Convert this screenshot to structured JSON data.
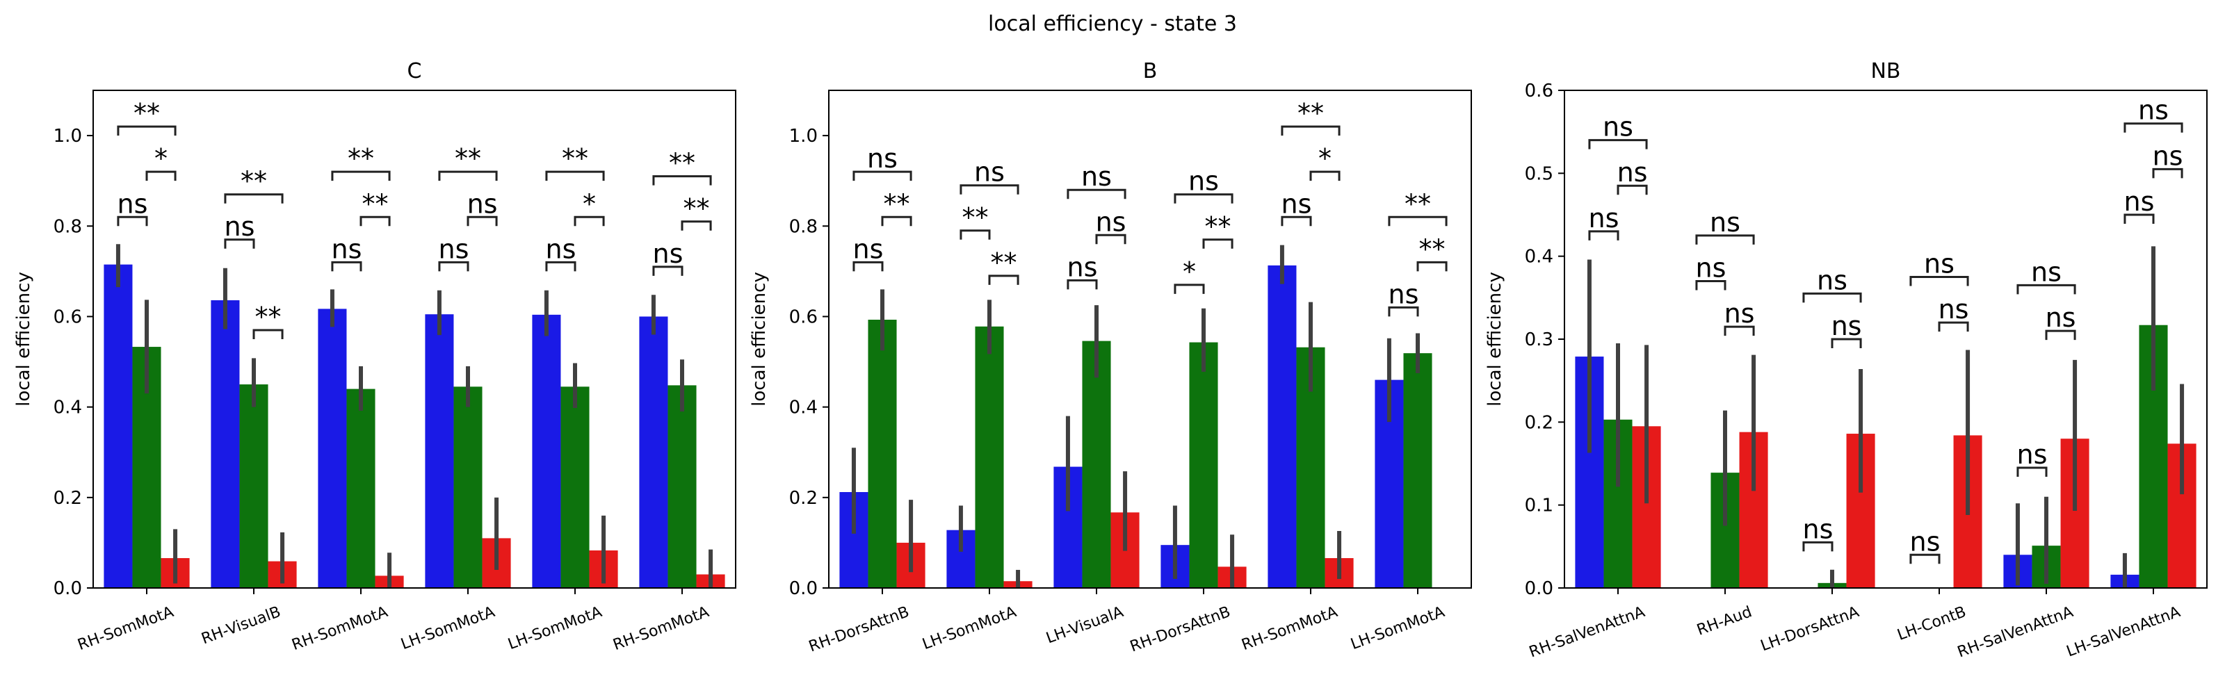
{
  "figure": {
    "title": "local efficiency - state 3"
  },
  "colors": {
    "series": [
      "#1a1ae6",
      "#0d730d",
      "#e61a1a"
    ],
    "error_bar": "#404040",
    "axis": "#000000"
  },
  "chart_data": [
    {
      "type": "bar",
      "title": "C",
      "ylabel": "local efficiency",
      "ylim": [
        0,
        1.1
      ],
      "yticks": [
        "0.0",
        "0.2",
        "0.4",
        "0.6",
        "0.8",
        "1.0"
      ],
      "grid": false,
      "categories": [
        "RH-SomMotA",
        "RH-VisualB",
        "RH-SomMotA",
        "LH-SomMotA",
        "LH-SomMotA",
        "RH-SomMotA"
      ],
      "series": [
        {
          "values": [
            0.715,
            0.636,
            0.617,
            0.605,
            0.604,
            0.6
          ],
          "err_low": [
            0.665,
            0.572,
            0.577,
            0.559,
            0.557,
            0.56
          ],
          "err_high": [
            0.76,
            0.707,
            0.66,
            0.658,
            0.658,
            0.648
          ]
        },
        {
          "values": [
            0.533,
            0.45,
            0.44,
            0.445,
            0.445,
            0.448
          ],
          "err_low": [
            0.43,
            0.4,
            0.392,
            0.4,
            0.398,
            0.39
          ],
          "err_high": [
            0.637,
            0.508,
            0.49,
            0.49,
            0.497,
            0.505
          ]
        },
        {
          "values": [
            0.066,
            0.059,
            0.027,
            0.11,
            0.083,
            0.03
          ],
          "err_low": [
            0.01,
            0.01,
            0.0,
            0.04,
            0.01,
            0.0
          ],
          "err_high": [
            0.13,
            0.123,
            0.078,
            0.2,
            0.16,
            0.085
          ]
        }
      ],
      "annotations": [
        {
          "group": 0,
          "from": 0,
          "to": 1,
          "y": 0.82,
          "label": "ns"
        },
        {
          "group": 0,
          "from": 1,
          "to": 2,
          "y": 0.92,
          "label": "*"
        },
        {
          "group": 0,
          "from": 0,
          "to": 2,
          "y": 1.02,
          "label": "**"
        },
        {
          "group": 1,
          "from": 0,
          "to": 1,
          "y": 0.77,
          "label": "ns"
        },
        {
          "group": 1,
          "from": 1,
          "to": 2,
          "y": 0.57,
          "label": "**"
        },
        {
          "group": 1,
          "from": 0,
          "to": 2,
          "y": 0.87,
          "label": "**"
        },
        {
          "group": 2,
          "from": 0,
          "to": 1,
          "y": 0.72,
          "label": "ns"
        },
        {
          "group": 2,
          "from": 1,
          "to": 2,
          "y": 0.82,
          "label": "**"
        },
        {
          "group": 2,
          "from": 0,
          "to": 2,
          "y": 0.92,
          "label": "**"
        },
        {
          "group": 3,
          "from": 0,
          "to": 1,
          "y": 0.72,
          "label": "ns"
        },
        {
          "group": 3,
          "from": 1,
          "to": 2,
          "y": 0.82,
          "label": "ns"
        },
        {
          "group": 3,
          "from": 0,
          "to": 2,
          "y": 0.92,
          "label": "**"
        },
        {
          "group": 4,
          "from": 0,
          "to": 1,
          "y": 0.72,
          "label": "ns"
        },
        {
          "group": 4,
          "from": 1,
          "to": 2,
          "y": 0.82,
          "label": "*"
        },
        {
          "group": 4,
          "from": 0,
          "to": 2,
          "y": 0.92,
          "label": "**"
        },
        {
          "group": 5,
          "from": 0,
          "to": 1,
          "y": 0.71,
          "label": "ns"
        },
        {
          "group": 5,
          "from": 1,
          "to": 2,
          "y": 0.81,
          "label": "**"
        },
        {
          "group": 5,
          "from": 0,
          "to": 2,
          "y": 0.91,
          "label": "**"
        }
      ]
    },
    {
      "type": "bar",
      "title": "B",
      "ylabel": "local efficiency",
      "ylim": [
        0,
        1.1
      ],
      "yticks": [
        "0.0",
        "0.2",
        "0.4",
        "0.6",
        "0.8",
        "1.0"
      ],
      "grid": false,
      "categories": [
        "RH-DorsAttnB",
        "LH-SomMotA",
        "LH-VisualA",
        "RH-DorsAttnB",
        "RH-SomMotA",
        "LH-SomMotA"
      ],
      "series": [
        {
          "values": [
            0.212,
            0.128,
            0.268,
            0.095,
            0.713,
            0.46
          ],
          "err_low": [
            0.12,
            0.08,
            0.17,
            0.02,
            0.672,
            0.367
          ],
          "err_high": [
            0.31,
            0.182,
            0.38,
            0.182,
            0.758,
            0.552
          ]
        },
        {
          "values": [
            0.593,
            0.578,
            0.546,
            0.543,
            0.532,
            0.519
          ],
          "err_low": [
            0.525,
            0.517,
            0.465,
            0.478,
            0.434,
            0.475
          ],
          "err_high": [
            0.66,
            0.637,
            0.625,
            0.618,
            0.632,
            0.563
          ]
        },
        {
          "values": [
            0.1,
            0.015,
            0.167,
            0.047,
            0.066,
            0.0
          ],
          "err_low": [
            0.035,
            0.0,
            0.082,
            0.0,
            0.02,
            0.0
          ],
          "err_high": [
            0.195,
            0.04,
            0.258,
            0.118,
            0.126,
            0.0
          ]
        }
      ],
      "annotations": [
        {
          "group": 0,
          "from": 0,
          "to": 1,
          "y": 0.72,
          "label": "ns"
        },
        {
          "group": 0,
          "from": 1,
          "to": 2,
          "y": 0.82,
          "label": "**"
        },
        {
          "group": 0,
          "from": 0,
          "to": 2,
          "y": 0.92,
          "label": "ns"
        },
        {
          "group": 1,
          "from": 0,
          "to": 1,
          "y": 0.79,
          "label": "**"
        },
        {
          "group": 1,
          "from": 1,
          "to": 2,
          "y": 0.69,
          "label": "**"
        },
        {
          "group": 1,
          "from": 0,
          "to": 2,
          "y": 0.89,
          "label": "ns"
        },
        {
          "group": 2,
          "from": 0,
          "to": 1,
          "y": 0.68,
          "label": "ns"
        },
        {
          "group": 2,
          "from": 1,
          "to": 2,
          "y": 0.78,
          "label": "ns"
        },
        {
          "group": 2,
          "from": 0,
          "to": 2,
          "y": 0.88,
          "label": "ns"
        },
        {
          "group": 3,
          "from": 0,
          "to": 1,
          "y": 0.67,
          "label": "*"
        },
        {
          "group": 3,
          "from": 1,
          "to": 2,
          "y": 0.77,
          "label": "**"
        },
        {
          "group": 3,
          "from": 0,
          "to": 2,
          "y": 0.87,
          "label": "ns"
        },
        {
          "group": 4,
          "from": 0,
          "to": 1,
          "y": 0.82,
          "label": "ns"
        },
        {
          "group": 4,
          "from": 1,
          "to": 2,
          "y": 0.92,
          "label": "*"
        },
        {
          "group": 4,
          "from": 0,
          "to": 2,
          "y": 1.02,
          "label": "**"
        },
        {
          "group": 5,
          "from": 0,
          "to": 1,
          "y": 0.62,
          "label": "ns"
        },
        {
          "group": 5,
          "from": 1,
          "to": 2,
          "y": 0.72,
          "label": "**"
        },
        {
          "group": 5,
          "from": 0,
          "to": 2,
          "y": 0.82,
          "label": "**"
        }
      ]
    },
    {
      "type": "bar",
      "title": "NB",
      "ylabel": "local efficiency",
      "ylim": [
        0,
        0.6
      ],
      "yticks": [
        "0.0",
        "0.1",
        "0.2",
        "0.3",
        "0.4",
        "0.5",
        "0.6"
      ],
      "grid": false,
      "categories": [
        "RH-SalVenAttnA",
        "RH-Aud",
        "LH-DorsAttnA",
        "LH-ContB",
        "RH-SalVenAttnA",
        "LH-SalVenAttnA"
      ],
      "series": [
        {
          "values": [
            0.279,
            0.0,
            0.0,
            0.0,
            0.04,
            0.016
          ],
          "err_low": [
            0.163,
            0.0,
            0.0,
            0.0,
            0.003,
            0.0
          ],
          "err_high": [
            0.396,
            0.0,
            0.0,
            0.0,
            0.102,
            0.042
          ]
        },
        {
          "values": [
            0.203,
            0.139,
            0.006,
            0.0,
            0.051,
            0.317
          ],
          "err_low": [
            0.122,
            0.075,
            0.0,
            0.0,
            0.005,
            0.238
          ],
          "err_high": [
            0.295,
            0.214,
            0.022,
            0.0,
            0.11,
            0.412
          ]
        },
        {
          "values": [
            0.195,
            0.188,
            0.186,
            0.184,
            0.18,
            0.174
          ],
          "err_low": [
            0.102,
            0.117,
            0.115,
            0.088,
            0.093,
            0.113
          ],
          "err_high": [
            0.293,
            0.281,
            0.264,
            0.287,
            0.275,
            0.246
          ]
        }
      ],
      "annotations": [
        {
          "group": 0,
          "from": 0,
          "to": 1,
          "y": 0.43,
          "label": "ns"
        },
        {
          "group": 0,
          "from": 1,
          "to": 2,
          "y": 0.485,
          "label": "ns"
        },
        {
          "group": 0,
          "from": 0,
          "to": 2,
          "y": 0.54,
          "label": "ns"
        },
        {
          "group": 1,
          "from": 0,
          "to": 1,
          "y": 0.37,
          "label": "ns"
        },
        {
          "group": 1,
          "from": 1,
          "to": 2,
          "y": 0.315,
          "label": "ns"
        },
        {
          "group": 1,
          "from": 0,
          "to": 2,
          "y": 0.425,
          "label": "ns"
        },
        {
          "group": 2,
          "from": 0,
          "to": 1,
          "y": 0.055,
          "label": "ns"
        },
        {
          "group": 2,
          "from": 1,
          "to": 2,
          "y": 0.3,
          "label": "ns"
        },
        {
          "group": 2,
          "from": 0,
          "to": 2,
          "y": 0.355,
          "label": "ns"
        },
        {
          "group": 3,
          "from": 0,
          "to": 1,
          "y": 0.04,
          "label": "ns"
        },
        {
          "group": 3,
          "from": 1,
          "to": 2,
          "y": 0.32,
          "label": "ns"
        },
        {
          "group": 3,
          "from": 0,
          "to": 2,
          "y": 0.375,
          "label": "ns"
        },
        {
          "group": 4,
          "from": 0,
          "to": 1,
          "y": 0.145,
          "label": "ns"
        },
        {
          "group": 4,
          "from": 1,
          "to": 2,
          "y": 0.31,
          "label": "ns"
        },
        {
          "group": 4,
          "from": 0,
          "to": 2,
          "y": 0.365,
          "label": "ns"
        },
        {
          "group": 5,
          "from": 0,
          "to": 1,
          "y": 0.45,
          "label": "ns"
        },
        {
          "group": 5,
          "from": 1,
          "to": 2,
          "y": 0.505,
          "label": "ns"
        },
        {
          "group": 5,
          "from": 0,
          "to": 2,
          "y": 0.56,
          "label": "ns"
        }
      ]
    }
  ]
}
